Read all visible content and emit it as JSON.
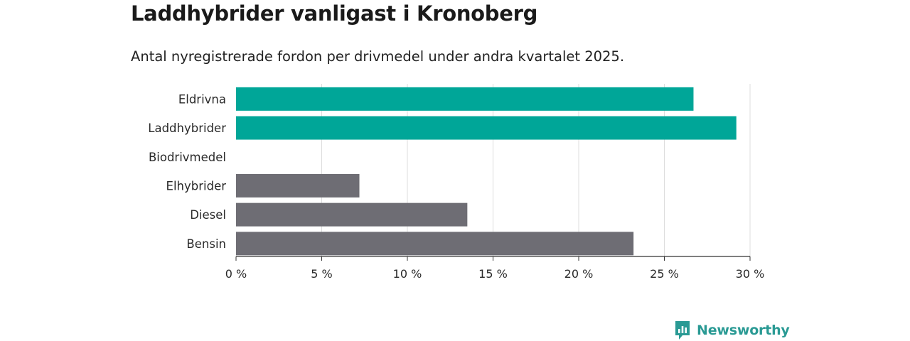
{
  "header": {
    "title": "Laddhybrider vanligast i Kronoberg",
    "subtitle": "Antal nyregistrerade fordon per drivmedel under andra kvartalet 2025."
  },
  "brand": {
    "name": "Newsworthy",
    "icon": "newsworthy-logo-icon",
    "color": "#2a9a94"
  },
  "chart_data": {
    "type": "bar",
    "orientation": "horizontal",
    "title": "Laddhybrider vanligast i Kronoberg",
    "subtitle": "Antal nyregistrerade fordon per drivmedel under andra kvartalet 2025.",
    "categories": [
      "Eldrivna",
      "Laddhybrider",
      "Biodrivmedel",
      "Elhybrider",
      "Diesel",
      "Bensin"
    ],
    "values": [
      26.7,
      29.2,
      0,
      7.2,
      13.5,
      23.2
    ],
    "colors": [
      "#00a698",
      "#00a698",
      "#00a698",
      "#6e6d74",
      "#6e6d74",
      "#6e6d74"
    ],
    "xlim": [
      0,
      30
    ],
    "xticks": [
      0,
      5,
      10,
      15,
      20,
      25,
      30
    ],
    "xtick_labels": [
      "0 %",
      "5 %",
      "10 %",
      "15 %",
      "20 %",
      "25 %",
      "30 %"
    ],
    "grid": "vertical",
    "unit": "%"
  }
}
